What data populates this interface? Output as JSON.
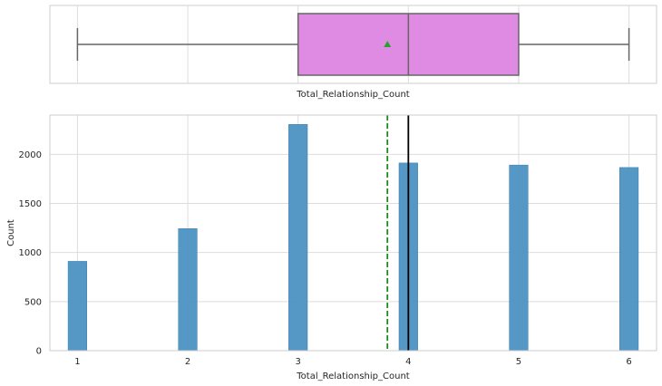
{
  "chart_data": [
    {
      "type": "box",
      "xlabel": "Total_Relationship_Count",
      "xlim": [
        0.75,
        6.25
      ],
      "grid": true,
      "box": {
        "whisker_low": 1,
        "q1": 3,
        "median": 4,
        "q3": 5,
        "whisker_high": 6,
        "mean": 3.81
      },
      "colors": {
        "box_fill": "#e08be3",
        "mean_marker": "#2ca02c",
        "lines": "#666666"
      }
    },
    {
      "type": "bar",
      "xlabel": "Total_Relationship_Count",
      "ylabel": "Count",
      "x_ticks": [
        1,
        2,
        3,
        4,
        5,
        6
      ],
      "y_ticks": [
        0,
        500,
        1000,
        1500,
        2000
      ],
      "xlim": [
        0.75,
        6.25
      ],
      "ylim": [
        0,
        2400
      ],
      "grid": true,
      "bar_width": 0.17,
      "categories": [
        1,
        2,
        3,
        4,
        5,
        6
      ],
      "values": [
        910,
        1243,
        2305,
        1912,
        1891,
        1866
      ],
      "mean_line": 3.81,
      "median_line": 4,
      "colors": {
        "bars": "#4c91c2",
        "mean_line": "#1a8a1a",
        "median_line": "#000000"
      }
    }
  ]
}
